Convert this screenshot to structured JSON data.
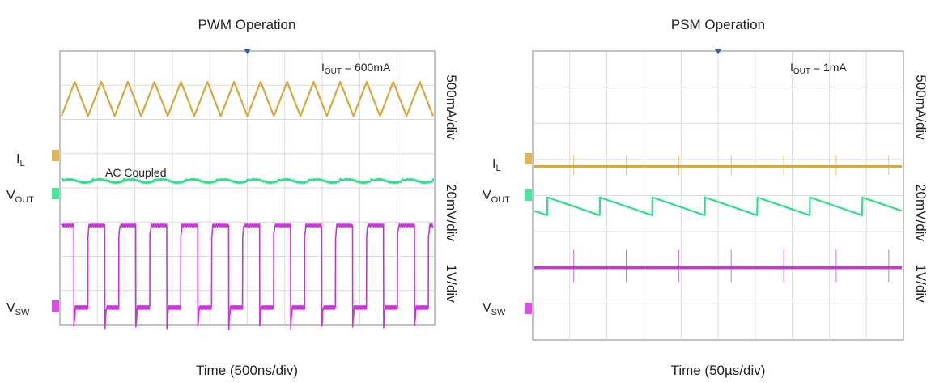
{
  "chart_data": [
    {
      "type": "line",
      "title": "PWM Operation",
      "xlabel": "Time (500ns/div)",
      "annotation": {
        "prefix": "I",
        "sub": "OUT",
        "text": " =  600mA"
      },
      "note": "AC Coupled",
      "x_divisions": 10,
      "y_divisions": 8,
      "series": [
        {
          "label": "I",
          "sub": "L",
          "scale": "500mA/div",
          "color": "#d9a83a",
          "waveform": "triangle",
          "cycles": 14,
          "level_div": 6.6,
          "amplitude_div": 0.5
        },
        {
          "label": "V",
          "sub": "OUT",
          "scale": "20mV/div",
          "color": "#2ee08a",
          "waveform": "ripple",
          "cycles": 12,
          "level_div": 4.2,
          "amplitude_div": 0.08
        },
        {
          "label": "V",
          "sub": "SW",
          "scale": "1V/div",
          "color": "#cc33dd",
          "waveform": "switching",
          "cycles": 12,
          "high_div": 2.9,
          "low_div": 0.5,
          "duty": 0.55
        }
      ]
    },
    {
      "type": "line",
      "title": "PSM Operation",
      "xlabel": "Time (50µs/div)",
      "annotation": {
        "prefix": "I",
        "sub": "OUT",
        "text": " =  1mA"
      },
      "x_divisions": 10,
      "y_divisions": 8,
      "series": [
        {
          "label": "I",
          "sub": "L",
          "scale": "500mA/div",
          "color": "#d9a83a",
          "waveform": "flat-spikes",
          "bursts": 7,
          "level_div": 4.8,
          "spike_div": 0.3
        },
        {
          "label": "V",
          "sub": "OUT",
          "scale": "20mV/div",
          "color": "#2ee08a",
          "waveform": "sawtooth",
          "bursts": 7,
          "level_div": 3.7,
          "amplitude_div": 0.25
        },
        {
          "label": "V",
          "sub": "SW",
          "scale": "1V/div",
          "color": "#cc33dd",
          "waveform": "flat-spikes",
          "bursts": 7,
          "level_div": 2.0,
          "spike_div": 0.5
        }
      ]
    }
  ]
}
